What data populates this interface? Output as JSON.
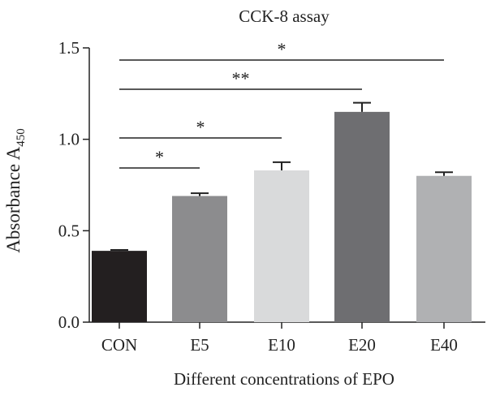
{
  "chart_data": {
    "type": "bar",
    "title": "CCK-8 assay",
    "xlabel": "Different concentrations of EPO",
    "ylabel": {
      "main": "Absorbance A",
      "subscript": "450"
    },
    "ylim": [
      0,
      1.5
    ],
    "yticks": [
      "0.0",
      "0.5",
      "1.0",
      "1.5"
    ],
    "grid": false,
    "categories": [
      "CON",
      "E5",
      "E10",
      "E20",
      "E40"
    ],
    "values": [
      0.39,
      0.69,
      0.83,
      1.15,
      0.8
    ],
    "errors": [
      0.005,
      0.015,
      0.045,
      0.05,
      0.02
    ],
    "bar_colors": [
      "#231f20",
      "#8c8c8e",
      "#d9dadb",
      "#6e6e71",
      "#b0b1b3"
    ],
    "significance": [
      {
        "from": "CON",
        "to": "E40",
        "label": "*"
      },
      {
        "from": "CON",
        "to": "E20",
        "label": "**"
      },
      {
        "from": "CON",
        "to": "E10",
        "label": "*"
      },
      {
        "from": "CON",
        "to": "E5",
        "label": "*"
      }
    ]
  }
}
